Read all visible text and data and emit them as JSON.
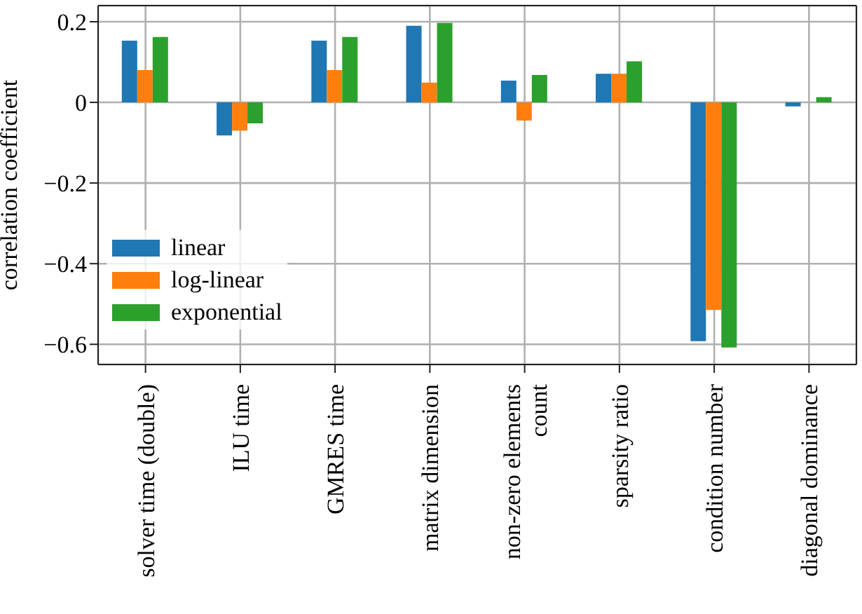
{
  "chart_data": {
    "type": "bar",
    "ylabel": "correlation coefficient",
    "categories": [
      "solver time (double)",
      "ILU time",
      "GMRES time",
      "matrix dimension",
      "non-zero elements count",
      "sparsity ratio",
      "condition number",
      "diagonal dominance"
    ],
    "series": [
      {
        "name": "linear",
        "color": "#1f77b4",
        "values": [
          0.153,
          -0.082,
          0.153,
          0.19,
          0.054,
          0.071,
          -0.592,
          -0.01
        ]
      },
      {
        "name": "log-linear",
        "color": "#ff7f0e",
        "values": [
          0.08,
          -0.07,
          0.08,
          0.049,
          -0.045,
          0.071,
          -0.515,
          0
        ]
      },
      {
        "name": "exponential",
        "color": "#2ca02c",
        "values": [
          0.162,
          -0.052,
          0.162,
          0.197,
          0.068,
          0.102,
          -0.608,
          0.013
        ]
      }
    ],
    "ylim": [
      -0.65,
      0.24
    ],
    "yticks": [
      -0.6,
      -0.4,
      -0.2,
      0,
      0.2
    ],
    "grid": true,
    "legend": "bottom left"
  }
}
